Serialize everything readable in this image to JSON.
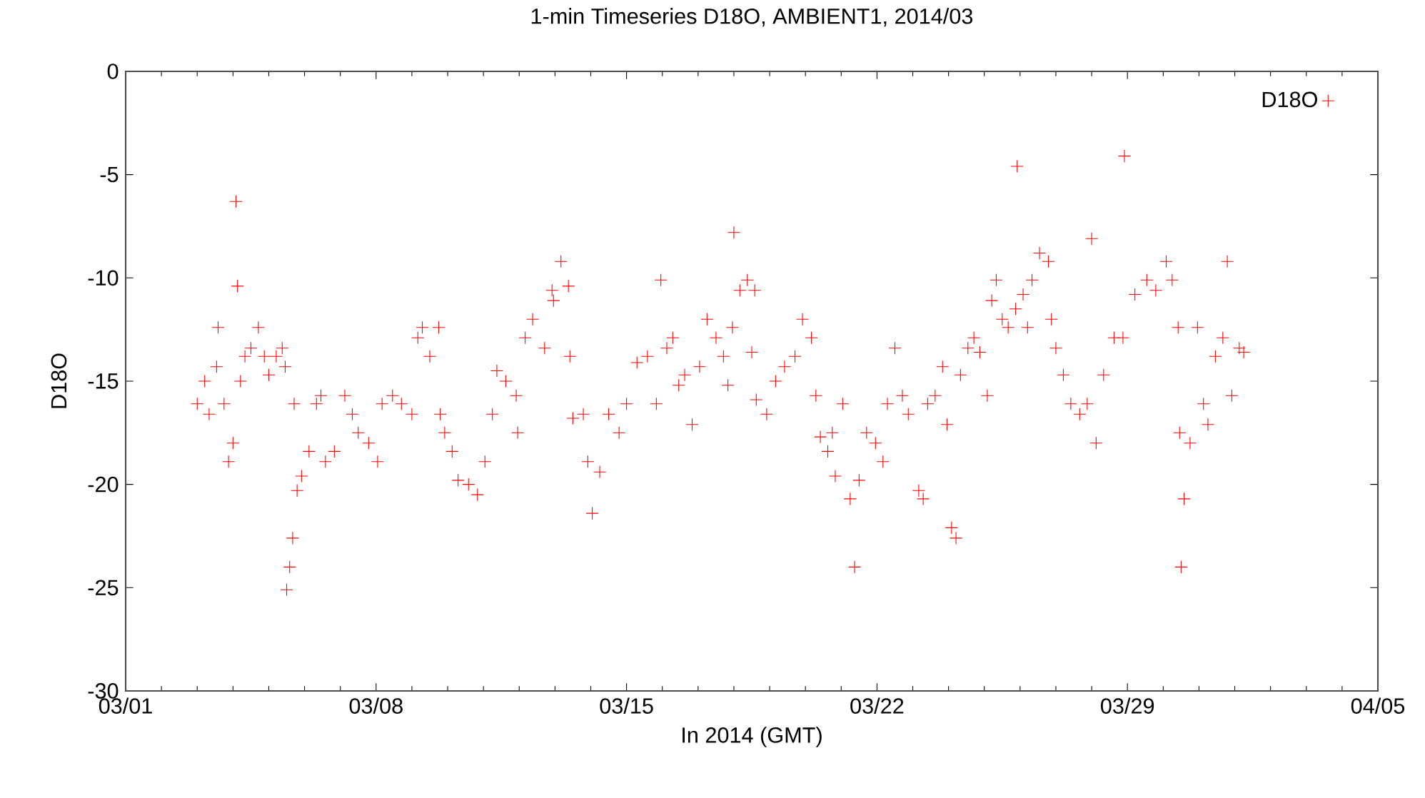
{
  "chart_data": {
    "type": "scatter",
    "title": "1-min Timeseries D18O, AMBIENT1, 2014/03",
    "xlabel": "In 2014 (GMT)",
    "ylabel": "D18O",
    "xlim": [
      "2014-03-01",
      "2014-04-05"
    ],
    "xticks": [
      {
        "value": "2014-03-01",
        "label": "03/01"
      },
      {
        "value": "2014-03-08",
        "label": "03/08"
      },
      {
        "value": "2014-03-15",
        "label": "03/15"
      },
      {
        "value": "2014-03-22",
        "label": "03/22"
      },
      {
        "value": "2014-03-29",
        "label": "03/29"
      },
      {
        "value": "2014-04-05",
        "label": "04/05"
      }
    ],
    "ylim": [
      -30,
      0
    ],
    "yticks": [
      -30,
      -25,
      -20,
      -15,
      -10,
      -5,
      0
    ],
    "legend": "top right",
    "marker": "cross",
    "grid": false,
    "series": [
      {
        "name": "D18O",
        "color": "#ff0000",
        "x": [
          "2014-03-03T00:00",
          "2014-03-03T05:00",
          "2014-03-03T08:00",
          "2014-03-03T13:00",
          "2014-03-03T14:00",
          "2014-03-03T18:00",
          "2014-03-03T21:00",
          "2014-03-04T00:00",
          "2014-03-04T02:00",
          "2014-03-04T03:00",
          "2014-03-04T05:00",
          "2014-03-04T08:00",
          "2014-03-04T12:00",
          "2014-03-04T17:00",
          "2014-03-04T21:00",
          "2014-03-05T00:00",
          "2014-03-05T05:00",
          "2014-03-05T09:00",
          "2014-03-05T11:00",
          "2014-03-05T12:00",
          "2014-03-05T14:00",
          "2014-03-05T16:00",
          "2014-03-05T17:00",
          "2014-03-05T19:00",
          "2014-03-05T22:00",
          "2014-03-06T03:00",
          "2014-03-06T08:00",
          "2014-03-06T11:00",
          "2014-03-06T14:00",
          "2014-03-06T20:00",
          "2014-03-07T03:00",
          "2014-03-07T08:00",
          "2014-03-07T12:00",
          "2014-03-07T19:00",
          "2014-03-08T01:00",
          "2014-03-08T04:00",
          "2014-03-08T11:00",
          "2014-03-08T17:00",
          "2014-03-09T00:00",
          "2014-03-09T04:00",
          "2014-03-09T07:00",
          "2014-03-09T12:00",
          "2014-03-09T18:00",
          "2014-03-09T19:00",
          "2014-03-09T22:00",
          "2014-03-10T03:00",
          "2014-03-10T07:00",
          "2014-03-10T14:00",
          "2014-03-10T20:00",
          "2014-03-11T01:00",
          "2014-03-11T06:00",
          "2014-03-11T09:00",
          "2014-03-11T15:00",
          "2014-03-11T22:00",
          "2014-03-11T23:00",
          "2014-03-12T04:00",
          "2014-03-12T09:00",
          "2014-03-12T17:00",
          "2014-03-12T22:00",
          "2014-03-12T23:00",
          "2014-03-13T04:00",
          "2014-03-13T09:00",
          "2014-03-13T10:00",
          "2014-03-13T12:00",
          "2014-03-13T19:00",
          "2014-03-13T22:00",
          "2014-03-14T01:00",
          "2014-03-14T06:00",
          "2014-03-14T12:00",
          "2014-03-14T19:00",
          "2014-03-15T00:00",
          "2014-03-15T07:00",
          "2014-03-15T14:00",
          "2014-03-15T20:00",
          "2014-03-15T23:00",
          "2014-03-16T03:00",
          "2014-03-16T07:00",
          "2014-03-16T11:00",
          "2014-03-16T15:00",
          "2014-03-16T20:00",
          "2014-03-17T01:00",
          "2014-03-17T06:00",
          "2014-03-17T12:00",
          "2014-03-17T17:00",
          "2014-03-17T20:00",
          "2014-03-17T23:00",
          "2014-03-18T00:00",
          "2014-03-18T04:00",
          "2014-03-18T09:00",
          "2014-03-18T12:00",
          "2014-03-18T14:00",
          "2014-03-18T15:00",
          "2014-03-18T22:00",
          "2014-03-19T04:00",
          "2014-03-19T10:00",
          "2014-03-19T17:00",
          "2014-03-19T22:00",
          "2014-03-20T04:00",
          "2014-03-20T07:00",
          "2014-03-20T10:00",
          "2014-03-20T15:00",
          "2014-03-20T18:00",
          "2014-03-20T20:00",
          "2014-03-21T01:00",
          "2014-03-21T06:00",
          "2014-03-21T09:00",
          "2014-03-21T12:00",
          "2014-03-21T17:00",
          "2014-03-21T23:00",
          "2014-03-22T04:00",
          "2014-03-22T07:00",
          "2014-03-22T12:00",
          "2014-03-22T17:00",
          "2014-03-22T21:00",
          "2014-03-23T04:00",
          "2014-03-23T07:00",
          "2014-03-23T10:00",
          "2014-03-23T15:00",
          "2014-03-23T20:00",
          "2014-03-23T23:00",
          "2014-03-24T02:00",
          "2014-03-24T05:00",
          "2014-03-24T08:00",
          "2014-03-24T13:00",
          "2014-03-24T17:00",
          "2014-03-24T21:00",
          "2014-03-25T02:00",
          "2014-03-25T05:00",
          "2014-03-25T08:00",
          "2014-03-25T12:00",
          "2014-03-25T16:00",
          "2014-03-25T21:00",
          "2014-03-25T22:00",
          "2014-03-26T02:00",
          "2014-03-26T05:00",
          "2014-03-26T08:00",
          "2014-03-26T13:00",
          "2014-03-26T19:00",
          "2014-03-26T21:00",
          "2014-03-27T00:00",
          "2014-03-27T05:00",
          "2014-03-27T10:00",
          "2014-03-27T16:00",
          "2014-03-27T21:00",
          "2014-03-28T00:00",
          "2014-03-28T03:00",
          "2014-03-28T08:00",
          "2014-03-28T15:00",
          "2014-03-28T21:00",
          "2014-03-28T22:00",
          "2014-03-29T05:00",
          "2014-03-29T13:00",
          "2014-03-29T19:00",
          "2014-03-30T02:00",
          "2014-03-30T06:00",
          "2014-03-30T10:00",
          "2014-03-30T11:00",
          "2014-03-30T12:00",
          "2014-03-30T14:00",
          "2014-03-30T18:00",
          "2014-03-30T23:00",
          "2014-03-31T03:00",
          "2014-03-31T06:00",
          "2014-03-31T11:00",
          "2014-03-31T16:00",
          "2014-03-31T19:00",
          "2014-03-31T22:00",
          "2014-04-01T03:00",
          "2014-04-01T06:00"
        ],
        "values": [
          -16.1,
          -15.0,
          -16.6,
          -14.3,
          -12.4,
          -16.1,
          -18.9,
          -18.0,
          -6.3,
          -10.4,
          -15.0,
          -13.8,
          -13.4,
          -12.4,
          -13.8,
          -14.7,
          -13.8,
          -13.4,
          -14.3,
          -25.1,
          -24.0,
          -22.6,
          -16.1,
          -20.3,
          -19.6,
          -18.4,
          -16.1,
          -15.7,
          -18.9,
          -18.4,
          -15.7,
          -16.6,
          -17.5,
          -18.0,
          -18.9,
          -16.1,
          -15.7,
          -16.1,
          -16.6,
          -12.9,
          -12.4,
          -13.8,
          -12.4,
          -16.6,
          -17.5,
          -18.4,
          -19.8,
          -20.0,
          -20.5,
          -18.9,
          -16.6,
          -14.5,
          -15.0,
          -15.7,
          -17.5,
          -12.9,
          -12.0,
          -13.4,
          -10.6,
          -11.1,
          -9.2,
          -10.4,
          -13.8,
          -16.8,
          -16.6,
          -18.9,
          -21.4,
          -19.4,
          -16.6,
          -17.5,
          -16.1,
          -14.1,
          -13.8,
          -16.1,
          -10.1,
          -13.4,
          -12.9,
          -15.2,
          -14.7,
          -17.1,
          -14.3,
          -12.0,
          -12.9,
          -13.8,
          -15.2,
          -12.4,
          -7.8,
          -10.6,
          -10.1,
          -13.6,
          -10.6,
          -15.9,
          -16.6,
          -15.0,
          -14.3,
          -13.8,
          -12.0,
          -12.9,
          -15.7,
          -17.7,
          -18.4,
          -17.5,
          -19.6,
          -16.1,
          -20.7,
          -24.0,
          -19.8,
          -17.5,
          -18.0,
          -18.9,
          -16.1,
          -13.4,
          -15.7,
          -16.6,
          -20.3,
          -20.7,
          -16.1,
          -15.7,
          -14.3,
          -17.1,
          -22.1,
          -22.6,
          -14.7,
          -13.4,
          -12.9,
          -13.6,
          -15.7,
          -11.1,
          -10.1,
          -12.0,
          -12.4,
          -11.5,
          -4.6,
          -10.8,
          -12.4,
          -10.1,
          -8.8,
          -9.2,
          -12.0,
          -13.4,
          -14.7,
          -16.1,
          -16.6,
          -16.1,
          -8.1,
          -18.0,
          -14.7,
          -12.9,
          -12.9,
          -4.1,
          -10.8,
          -10.1,
          -10.6,
          -9.2,
          -10.1,
          -12.4,
          -17.5,
          -24.0,
          -20.7,
          -18.0,
          -12.4,
          -16.1,
          -17.1,
          -13.8,
          -12.9,
          -9.2,
          -15.7,
          -13.4,
          -13.6
        ]
      }
    ]
  }
}
